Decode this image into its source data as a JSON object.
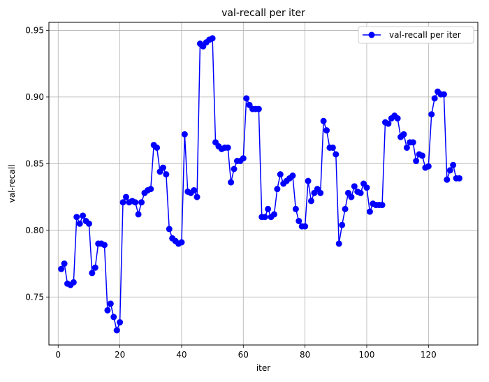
{
  "chart_data": {
    "type": "line",
    "title": "val-recall per iter",
    "xlabel": "iter",
    "ylabel": "val-recall",
    "xlim": [
      -3,
      136
    ],
    "ylim": [
      0.714,
      0.956
    ],
    "x_ticks": [
      0,
      20,
      40,
      60,
      80,
      100,
      120
    ],
    "y_ticks": [
      0.75,
      0.8,
      0.85,
      0.9,
      0.95
    ],
    "grid": true,
    "legend_position": "top-right",
    "series": [
      {
        "name": "val-recall per iter",
        "color": "#0000ff",
        "marker": "circle",
        "x": [
          1,
          2,
          3,
          4,
          5,
          6,
          7,
          8,
          9,
          10,
          11,
          12,
          13,
          14,
          15,
          16,
          17,
          18,
          19,
          20,
          21,
          22,
          23,
          24,
          25,
          26,
          27,
          28,
          29,
          30,
          31,
          32,
          33,
          34,
          35,
          36,
          37,
          38,
          39,
          40,
          41,
          42,
          43,
          44,
          45,
          46,
          47,
          48,
          49,
          50,
          51,
          52,
          53,
          54,
          55,
          56,
          57,
          58,
          59,
          60,
          61,
          62,
          63,
          64,
          65,
          66,
          67,
          68,
          69,
          70,
          71,
          72,
          73,
          74,
          75,
          76,
          77,
          78,
          79,
          80,
          81,
          82,
          83,
          84,
          85,
          86,
          87,
          88,
          89,
          90,
          91,
          92,
          93,
          94,
          95,
          96,
          97,
          98,
          99,
          100,
          101,
          102,
          103,
          104,
          105,
          106,
          107,
          108,
          109,
          110,
          111,
          112,
          113,
          114,
          115,
          116,
          117,
          118,
          119,
          120,
          121,
          122,
          123,
          124,
          125,
          126,
          127,
          128,
          129,
          130
        ],
        "y": [
          0.771,
          0.775,
          0.76,
          0.759,
          0.761,
          0.81,
          0.805,
          0.811,
          0.807,
          0.805,
          0.768,
          0.772,
          0.79,
          0.79,
          0.789,
          0.74,
          0.745,
          0.735,
          0.725,
          0.731,
          0.821,
          0.825,
          0.821,
          0.822,
          0.821,
          0.812,
          0.821,
          0.828,
          0.83,
          0.831,
          0.864,
          0.862,
          0.844,
          0.847,
          0.842,
          0.801,
          0.794,
          0.792,
          0.79,
          0.791,
          0.872,
          0.829,
          0.828,
          0.83,
          0.825,
          0.94,
          0.938,
          0.941,
          0.943,
          0.944,
          0.866,
          0.863,
          0.861,
          0.862,
          0.862,
          0.836,
          0.846,
          0.852,
          0.852,
          0.854,
          0.899,
          0.894,
          0.891,
          0.891,
          0.891,
          0.81,
          0.81,
          0.816,
          0.81,
          0.812,
          0.831,
          0.842,
          0.835,
          0.837,
          0.839,
          0.841,
          0.816,
          0.807,
          0.803,
          0.803,
          0.837,
          0.822,
          0.828,
          0.831,
          0.828,
          0.882,
          0.875,
          0.862,
          0.862,
          0.857,
          0.79,
          0.804,
          0.816,
          0.828,
          0.825,
          0.833,
          0.829,
          0.828,
          0.835,
          0.832,
          0.814,
          0.82,
          0.819,
          0.819,
          0.819,
          0.881,
          0.88,
          0.884,
          0.886,
          0.884,
          0.87,
          0.872,
          0.862,
          0.866,
          0.866,
          0.852,
          0.857,
          0.856,
          0.847,
          0.848,
          0.887,
          0.899,
          0.904,
          0.902,
          0.902,
          0.838,
          0.845,
          0.849,
          0.839,
          0.839
        ]
      }
    ]
  }
}
